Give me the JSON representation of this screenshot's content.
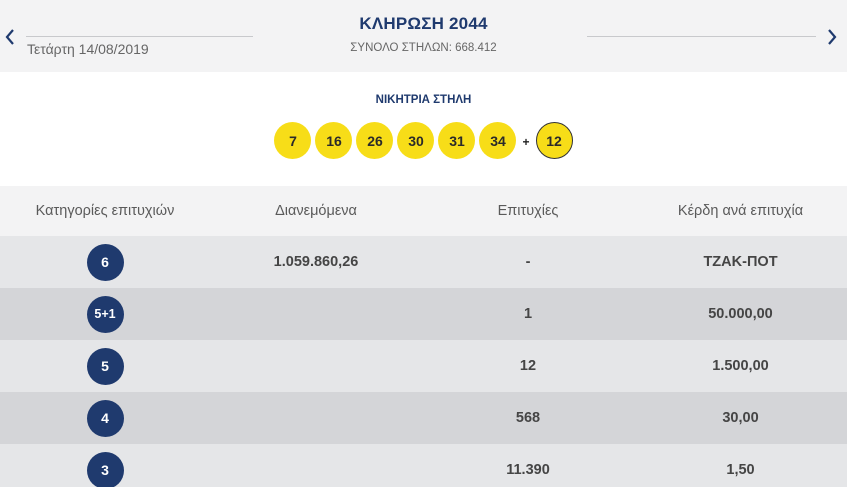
{
  "header": {
    "date": "Τετάρτη 14/08/2019",
    "draw_title": "ΚΛΗΡΩΣΗ 2044",
    "total_columns": "ΣΥΝΟΛΟ ΣΤΗΛΩΝ: 668.412",
    "prev_icon": "chevron-left-icon",
    "next_icon": "chevron-right-icon"
  },
  "winning": {
    "title": "ΝΙΚΗΤΡΙΑ ΣΤΗΛΗ",
    "numbers": [
      "7",
      "16",
      "26",
      "30",
      "31",
      "34"
    ],
    "plus": "+",
    "joker": "12"
  },
  "table": {
    "headers": [
      "Κατηγορίες επιτυχιών",
      "Διανεμόμενα",
      "Επιτυχίες",
      "Κέρδη ανά επιτυχία"
    ],
    "rows": [
      {
        "category": "6",
        "distributed": "1.059.860,26",
        "winners": "-",
        "prize": "ΤΖΑΚ-ΠΟΤ"
      },
      {
        "category": "5+1",
        "distributed": "",
        "winners": "1",
        "prize": "50.000,00"
      },
      {
        "category": "5",
        "distributed": "",
        "winners": "12",
        "prize": "1.500,00"
      },
      {
        "category": "4",
        "distributed": "",
        "winners": "568",
        "prize": "30,00"
      },
      {
        "category": "3",
        "distributed": "",
        "winners": "11.390",
        "prize": "1,50"
      }
    ]
  },
  "colors": {
    "navy": "#1f3a6e",
    "ball_yellow": "#f7dd18",
    "row_light": "#e5e6e8",
    "row_dark": "#d4d5d8",
    "header_bg": "#f3f3f4"
  }
}
